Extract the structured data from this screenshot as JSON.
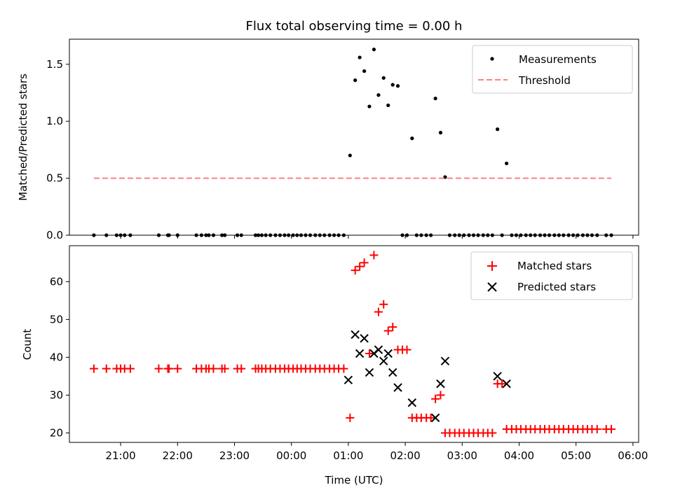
{
  "chart_data": {
    "type": "scatter",
    "title": "Flux total observing time = 0.00 h",
    "xlabel": "Time (UTC)",
    "x_unit": "hours since 00:00 UTC",
    "xlim": [
      -3.9,
      6.1
    ],
    "x_ticks": [
      -3,
      -2,
      -1,
      0,
      1,
      2,
      3,
      4,
      5,
      6
    ],
    "x_tick_labels": [
      "21:00",
      "22:00",
      "23:00",
      "00:00",
      "01:00",
      "02:00",
      "03:00",
      "04:00",
      "05:00",
      "06:00"
    ],
    "times": [
      -3.47,
      -3.25,
      -3.07,
      -3.0,
      -2.93,
      -2.83,
      -2.33,
      -2.17,
      -2.15,
      -2.0,
      -1.67,
      -1.58,
      -1.5,
      -1.45,
      -1.37,
      -1.22,
      -1.17,
      -0.95,
      -0.88,
      -0.63,
      -0.58,
      -0.52,
      -0.45,
      -0.37,
      -0.28,
      -0.2,
      -0.12,
      -0.05,
      0.03,
      0.1,
      0.17,
      0.25,
      0.33,
      0.42,
      0.5,
      0.58,
      0.67,
      0.75,
      0.83,
      0.92,
      1.03,
      1.12,
      1.2,
      1.28,
      1.37,
      1.45,
      1.53,
      1.62,
      1.7,
      1.78,
      1.87,
      1.95,
      2.03,
      2.12,
      2.2,
      2.28,
      2.37,
      2.45,
      2.53,
      2.62,
      2.7,
      2.78,
      2.87,
      2.95,
      3.03,
      3.12,
      3.2,
      3.28,
      3.37,
      3.45,
      3.53,
      3.62,
      3.7,
      3.78,
      3.87,
      3.95,
      4.03,
      4.12,
      4.2,
      4.28,
      4.37,
      4.45,
      4.53,
      4.62,
      4.7,
      4.78,
      4.87,
      4.95,
      5.03,
      5.12,
      5.2,
      5.28,
      5.37,
      5.53,
      5.62
    ],
    "panels": [
      {
        "name": "ratio",
        "ylabel": "Matched/Predicted stars",
        "ylim": [
          0,
          1.72
        ],
        "y_ticks": [
          0.0,
          0.5,
          1.0,
          1.5
        ],
        "y_tick_labels": [
          "0.0",
          "0.5",
          "1.0",
          "1.5"
        ],
        "legend_position": "top-right",
        "series": [
          {
            "name": "Measurements",
            "kind": "dot",
            "color": "#000000",
            "values": [
              0,
              0,
              0,
              0,
              0,
              0,
              0,
              0,
              0,
              0,
              0,
              0,
              0,
              0,
              0,
              0,
              0,
              0,
              0,
              0,
              0,
              0,
              0,
              0,
              0,
              0,
              0,
              0,
              0,
              0,
              0,
              0,
              0,
              0,
              0,
              0,
              0,
              0,
              0,
              0,
              0.7,
              1.36,
              1.56,
              1.44,
              1.13,
              1.63,
              1.23,
              1.38,
              1.14,
              1.32,
              1.31,
              0,
              0,
              0.85,
              0,
              0,
              0,
              0,
              1.2,
              0.9,
              0.51,
              0,
              0,
              0,
              0,
              0,
              0,
              0,
              0,
              0,
              0,
              0.93,
              0,
              0.63,
              0,
              0,
              0,
              0,
              0,
              0,
              0,
              0,
              0,
              0,
              0,
              0,
              0,
              0,
              0,
              0,
              0,
              0,
              0,
              0,
              0
            ]
          },
          {
            "name": "Threshold",
            "kind": "dashed-line",
            "color": "#ff8080",
            "x": [
              -3.47,
              5.62
            ],
            "values": [
              0.5,
              0.5
            ]
          }
        ]
      },
      {
        "name": "counts",
        "ylabel": "Count",
        "ylim": [
          17.5,
          69.5
        ],
        "y_ticks": [
          20,
          30,
          40,
          50,
          60
        ],
        "y_tick_labels": [
          "20",
          "30",
          "40",
          "50",
          "60"
        ],
        "legend_position": "top-right",
        "series": [
          {
            "name": "Matched stars",
            "kind": "plus",
            "color": "#ff0000",
            "values": [
              37,
              37,
              37,
              37,
              37,
              37,
              37,
              37,
              37,
              37,
              37,
              37,
              37,
              37,
              37,
              37,
              37,
              37,
              37,
              37,
              37,
              37,
              37,
              37,
              37,
              37,
              37,
              37,
              37,
              37,
              37,
              37,
              37,
              37,
              37,
              37,
              37,
              37,
              37,
              37,
              24,
              63,
              64,
              65,
              41,
              67,
              52,
              54,
              47,
              48,
              42,
              42,
              42,
              24,
              24,
              24,
              24,
              24,
              29,
              30,
              20,
              20,
              20,
              20,
              20,
              20,
              20,
              20,
              20,
              20,
              20,
              33,
              33,
              21,
              21,
              21,
              21,
              21,
              21,
              21,
              21,
              21,
              21,
              21,
              21,
              21,
              21,
              21,
              21,
              21,
              21,
              21,
              21,
              21,
              21
            ]
          },
          {
            "name": "Predicted stars",
            "kind": "x",
            "color": "#000000",
            "x": [
              1.0,
              1.12,
              1.2,
              1.28,
              1.37,
              1.45,
              1.53,
              1.62,
              1.7,
              1.78,
              1.87,
              2.12,
              2.53,
              2.62,
              2.7,
              3.62,
              3.78
            ],
            "values": [
              34,
              46,
              41,
              45,
              36,
              41,
              42,
              39,
              41,
              36,
              32,
              28,
              24,
              33,
              39,
              35,
              33
            ]
          }
        ]
      }
    ]
  }
}
